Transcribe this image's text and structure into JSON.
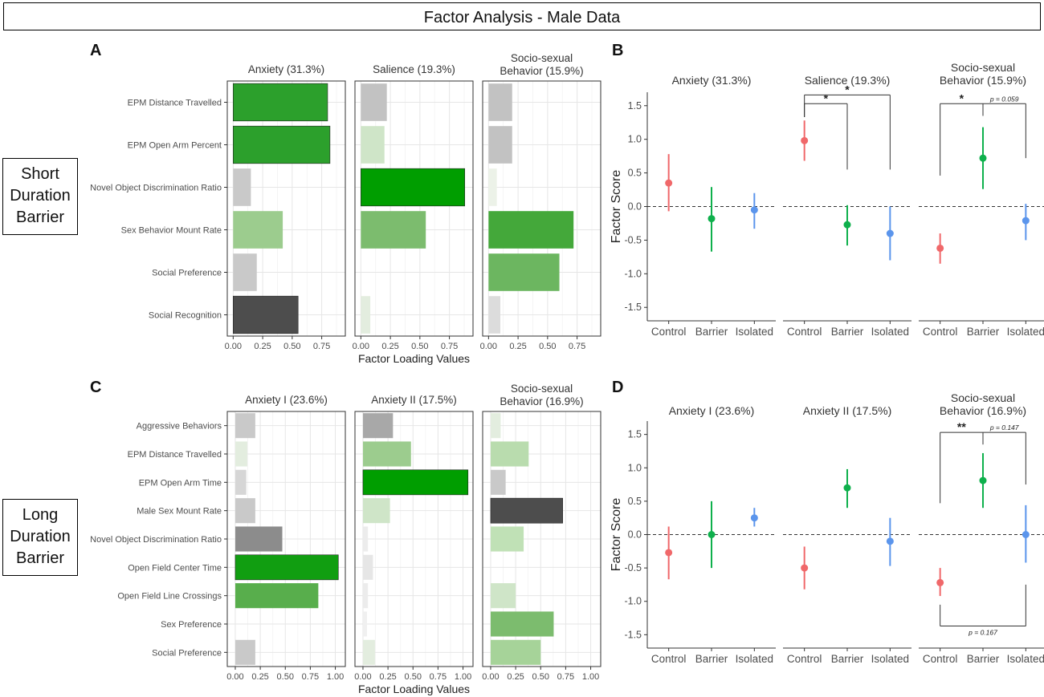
{
  "figure": {
    "title": "Factor Analysis - Male Data",
    "row_labels": [
      [
        "Short",
        "Duration",
        "Barrier"
      ],
      [
        "Long",
        "Duration",
        "Barrier"
      ]
    ],
    "panel_letters": [
      "A",
      "B",
      "C",
      "D"
    ]
  },
  "chart_data": [
    {
      "panel": "A",
      "type": "bar",
      "orientation": "horizontal",
      "xlabel": "Factor Loading Values",
      "xlim": [
        -0.05,
        0.95
      ],
      "xticks": [
        0,
        0.25,
        0.5,
        0.75
      ],
      "xtick_labels": [
        "0.00",
        "0.25",
        "0.50",
        "0.75"
      ],
      "categories": [
        "EPM Distance Travelled",
        "EPM Open Arm Percent",
        "Novel Object Discrimination Ratio",
        "Sex Behavior Mount Rate",
        "Social Preference",
        "Social Recognition"
      ],
      "series": [
        {
          "name": "Anxiety (31.3%)",
          "values": [
            0.8,
            0.82,
            0.15,
            0.42,
            0.2,
            0.55
          ],
          "colors": [
            "#2ca02c",
            "#2ca02c",
            "#c9c9c9",
            "#9ccc8e",
            "#c9c9c9",
            "#4d4d4d"
          ]
        },
        {
          "name": "Salience (19.3%)",
          "values": [
            0.22,
            0.2,
            0.88,
            0.55,
            0.0,
            0.08
          ],
          "colors": [
            "#c2c2c2",
            "#cfe5c8",
            "#009e00",
            "#7cbc6e",
            "#ffffff",
            "#e3eddf"
          ]
        },
        {
          "name": "Socio-sexual Behavior (15.9%)",
          "values": [
            0.2,
            0.2,
            0.07,
            0.72,
            0.6,
            0.1
          ],
          "colors": [
            "#c2c2c2",
            "#c2c2c2",
            "#ecf2e8",
            "#44a83a",
            "#6cb660",
            "#dcdcdc"
          ]
        }
      ]
    },
    {
      "panel": "B",
      "type": "scatter",
      "subtype": "point-range",
      "ylabel": "Factor Score",
      "ylim": [
        -1.7,
        1.7
      ],
      "yticks": [
        -1.5,
        -1.0,
        -0.5,
        0.0,
        0.5,
        1.0,
        1.5
      ],
      "ytick_labels": [
        "-1.5",
        "-1.0",
        "-0.5",
        "0.0",
        "0.5",
        "1.0",
        "1.5"
      ],
      "categories": [
        "Control",
        "Barrier",
        "Isolated"
      ],
      "group_colors": [
        "#f0686a",
        "#0eb04c",
        "#5b95ec"
      ],
      "reference_line": 0,
      "facets": [
        {
          "title": "Anxiety (31.3%)",
          "points": [
            {
              "group": "Control",
              "mean": 0.35,
              "low": -0.07,
              "high": 0.78
            },
            {
              "group": "Barrier",
              "mean": -0.18,
              "low": -0.67,
              "high": 0.29
            },
            {
              "group": "Isolated",
              "mean": -0.05,
              "low": -0.33,
              "high": 0.2
            }
          ],
          "annotations": []
        },
        {
          "title": "Salience (19.3%)",
          "points": [
            {
              "group": "Control",
              "mean": 0.98,
              "low": 0.68,
              "high": 1.28
            },
            {
              "group": "Barrier",
              "mean": -0.27,
              "low": -0.58,
              "high": 0.02
            },
            {
              "group": "Isolated",
              "mean": -0.4,
              "low": -0.8,
              "high": 0.0
            }
          ],
          "annotations": [
            {
              "from": "Control",
              "to": "Barrier",
              "label": "*",
              "y": 1.53,
              "left_end": 1.33,
              "right_end": 0.55
            },
            {
              "from": "Control",
              "to": "Isolated",
              "label": "*",
              "y": 1.66,
              "left_end": 1.33,
              "right_end": 0.55
            }
          ]
        },
        {
          "title": "Socio-sexual Behavior (15.9%)",
          "points": [
            {
              "group": "Control",
              "mean": -0.62,
              "low": -0.85,
              "high": -0.4
            },
            {
              "group": "Barrier",
              "mean": 0.72,
              "low": 0.26,
              "high": 1.18
            },
            {
              "group": "Isolated",
              "mean": -0.21,
              "low": -0.5,
              "high": 0.04
            }
          ],
          "annotations": [
            {
              "from": "Control",
              "to": "Barrier",
              "label": "*",
              "y": 1.53,
              "left_end": 0.46,
              "right_end": 1.35
            },
            {
              "from": "Barrier",
              "to": "Isolated",
              "label": "p = 0.059",
              "y": 1.53,
              "left_end": 1.35,
              "right_end": 0.72
            }
          ]
        }
      ]
    },
    {
      "panel": "C",
      "type": "bar",
      "orientation": "horizontal",
      "xlabel": "Factor Loading Values",
      "xlim": [
        -0.08,
        1.1
      ],
      "xticks": [
        0,
        0.25,
        0.5,
        0.75,
        1.0
      ],
      "xtick_labels": [
        "0.00",
        "0.25",
        "0.50",
        "0.75",
        "1.00"
      ],
      "categories": [
        "Aggressive Behaviors",
        "EPM Distance Travelled",
        "EPM Open Arm Time",
        "Male Sex Mount Rate",
        "Novel Object Discrimination Ratio",
        "Open Field Center Time",
        "Open Field Line Crossings",
        "Sex Preference",
        "Social Preference"
      ],
      "series": [
        {
          "name": "Anxiety I (23.6%)",
          "values": [
            0.2,
            0.12,
            0.11,
            0.2,
            0.47,
            1.03,
            0.83,
            0.0,
            0.2
          ],
          "colors": [
            "#c9c9c9",
            "#e3eddf",
            "#d6d6d6",
            "#c9c9c9",
            "#8c8c8c",
            "#119e11",
            "#58ae4c",
            "#ffffff",
            "#c9c9c9"
          ]
        },
        {
          "name": "Anxiety II (17.5%)",
          "values": [
            0.3,
            0.48,
            1.05,
            0.27,
            0.05,
            0.1,
            0.05,
            0.04,
            0.12
          ],
          "colors": [
            "#a8a8a8",
            "#9ccc8e",
            "#009e00",
            "#cfe5c8",
            "#ececec",
            "#e6e6e6",
            "#ececec",
            "#f0f0f0",
            "#e3eddf"
          ]
        },
        {
          "name": "Socio-sexual Behavior (16.9%)",
          "values": [
            0.1,
            0.38,
            0.15,
            0.72,
            0.33,
            0.0,
            0.25,
            0.63,
            0.5
          ],
          "colors": [
            "#e3eddf",
            "#b9dcae",
            "#c9c9c9",
            "#4d4d4d",
            "#c0e1b6",
            "#ffffff",
            "#cfe5c8",
            "#7cbc6e",
            "#a6d399"
          ]
        }
      ]
    },
    {
      "panel": "D",
      "type": "scatter",
      "subtype": "point-range",
      "ylabel": "Factor Score",
      "ylim": [
        -1.7,
        1.7
      ],
      "yticks": [
        -1.5,
        -1.0,
        -0.5,
        0.0,
        0.5,
        1.0,
        1.5
      ],
      "ytick_labels": [
        "-1.5",
        "-1.0",
        "-0.5",
        "0.0",
        "0.5",
        "1.0",
        "1.5"
      ],
      "categories": [
        "Control",
        "Barrier",
        "Isolated"
      ],
      "group_colors": [
        "#f0686a",
        "#0eb04c",
        "#5b95ec"
      ],
      "reference_line": 0,
      "facets": [
        {
          "title": "Anxiety I (23.6%)",
          "points": [
            {
              "group": "Control",
              "mean": -0.27,
              "low": -0.67,
              "high": 0.12
            },
            {
              "group": "Barrier",
              "mean": 0.0,
              "low": -0.5,
              "high": 0.5
            },
            {
              "group": "Isolated",
              "mean": 0.25,
              "low": 0.12,
              "high": 0.4
            }
          ],
          "annotations": []
        },
        {
          "title": "Anxiety II (17.5%)",
          "points": [
            {
              "group": "Control",
              "mean": -0.5,
              "low": -0.82,
              "high": -0.18
            },
            {
              "group": "Barrier",
              "mean": 0.7,
              "low": 0.4,
              "high": 0.98
            },
            {
              "group": "Isolated",
              "mean": -0.1,
              "low": -0.47,
              "high": 0.25
            }
          ],
          "annotations": []
        },
        {
          "title": "Socio-sexual Behavior (16.9%)",
          "points": [
            {
              "group": "Control",
              "mean": -0.72,
              "low": -0.92,
              "high": -0.5
            },
            {
              "group": "Barrier",
              "mean": 0.81,
              "low": 0.4,
              "high": 1.22
            },
            {
              "group": "Isolated",
              "mean": 0.0,
              "low": -0.42,
              "high": 0.44
            }
          ],
          "annotations": [
            {
              "from": "Control",
              "to": "Barrier",
              "label": "**",
              "y": 1.53,
              "left_end": 0.47,
              "right_end": 1.35
            },
            {
              "from": "Barrier",
              "to": "Isolated",
              "label": "p = 0.147",
              "y": 1.53,
              "left_end": 1.35,
              "right_end": 0.75
            },
            {
              "from": "Control",
              "to": "Isolated",
              "label": "p = 0.167",
              "y": -1.37,
              "left_end": -1.05,
              "right_end": -0.75
            }
          ]
        }
      ]
    }
  ]
}
